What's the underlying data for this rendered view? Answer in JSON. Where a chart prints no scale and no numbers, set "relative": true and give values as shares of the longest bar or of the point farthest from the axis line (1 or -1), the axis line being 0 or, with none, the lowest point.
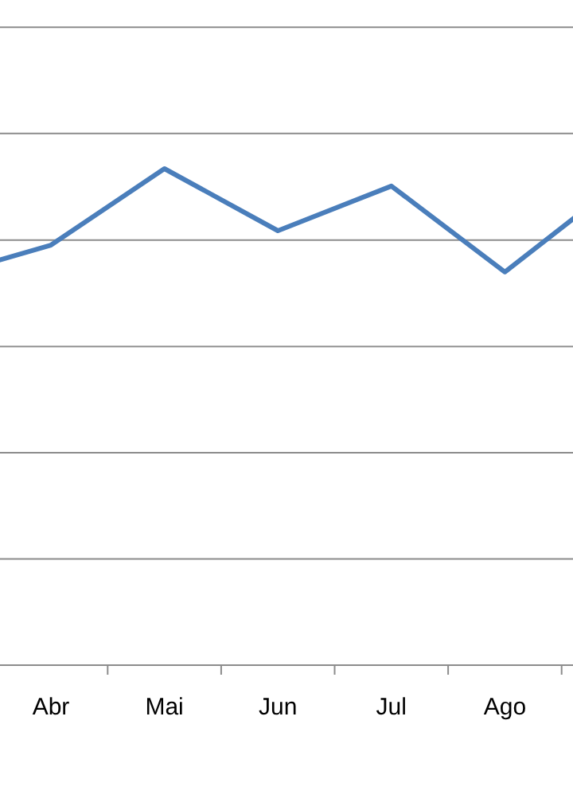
{
  "chart_data": {
    "type": "line",
    "relative": true,
    "marker": "none",
    "line_style": "solid",
    "categories": [
      null,
      "Abr",
      "Mai",
      "Jun",
      "Jul",
      "Ago",
      null
    ],
    "ref_lines": [
      {
        "axis": "y",
        "value": 0.214,
        "color": "#8c8c8c"
      },
      {
        "axis": "y",
        "value": 0.428,
        "color": "#8c8c8c"
      },
      {
        "axis": "y",
        "value": 0.642,
        "color": "#8c8c8c"
      },
      {
        "axis": "y",
        "value": 0.856,
        "color": "#8c8c8c"
      },
      {
        "axis": "y",
        "value": 1.071,
        "color": "#8c8c8c"
      },
      {
        "axis": "y",
        "value": 1.285,
        "color": "#8c8c8c"
      }
    ],
    "series": [
      {
        "color": "#4a7ebb",
        "values": [
          0.78,
          0.846,
          1,
          0.875,
          0.965,
          0.792,
          0.97
        ]
      }
    ]
  }
}
